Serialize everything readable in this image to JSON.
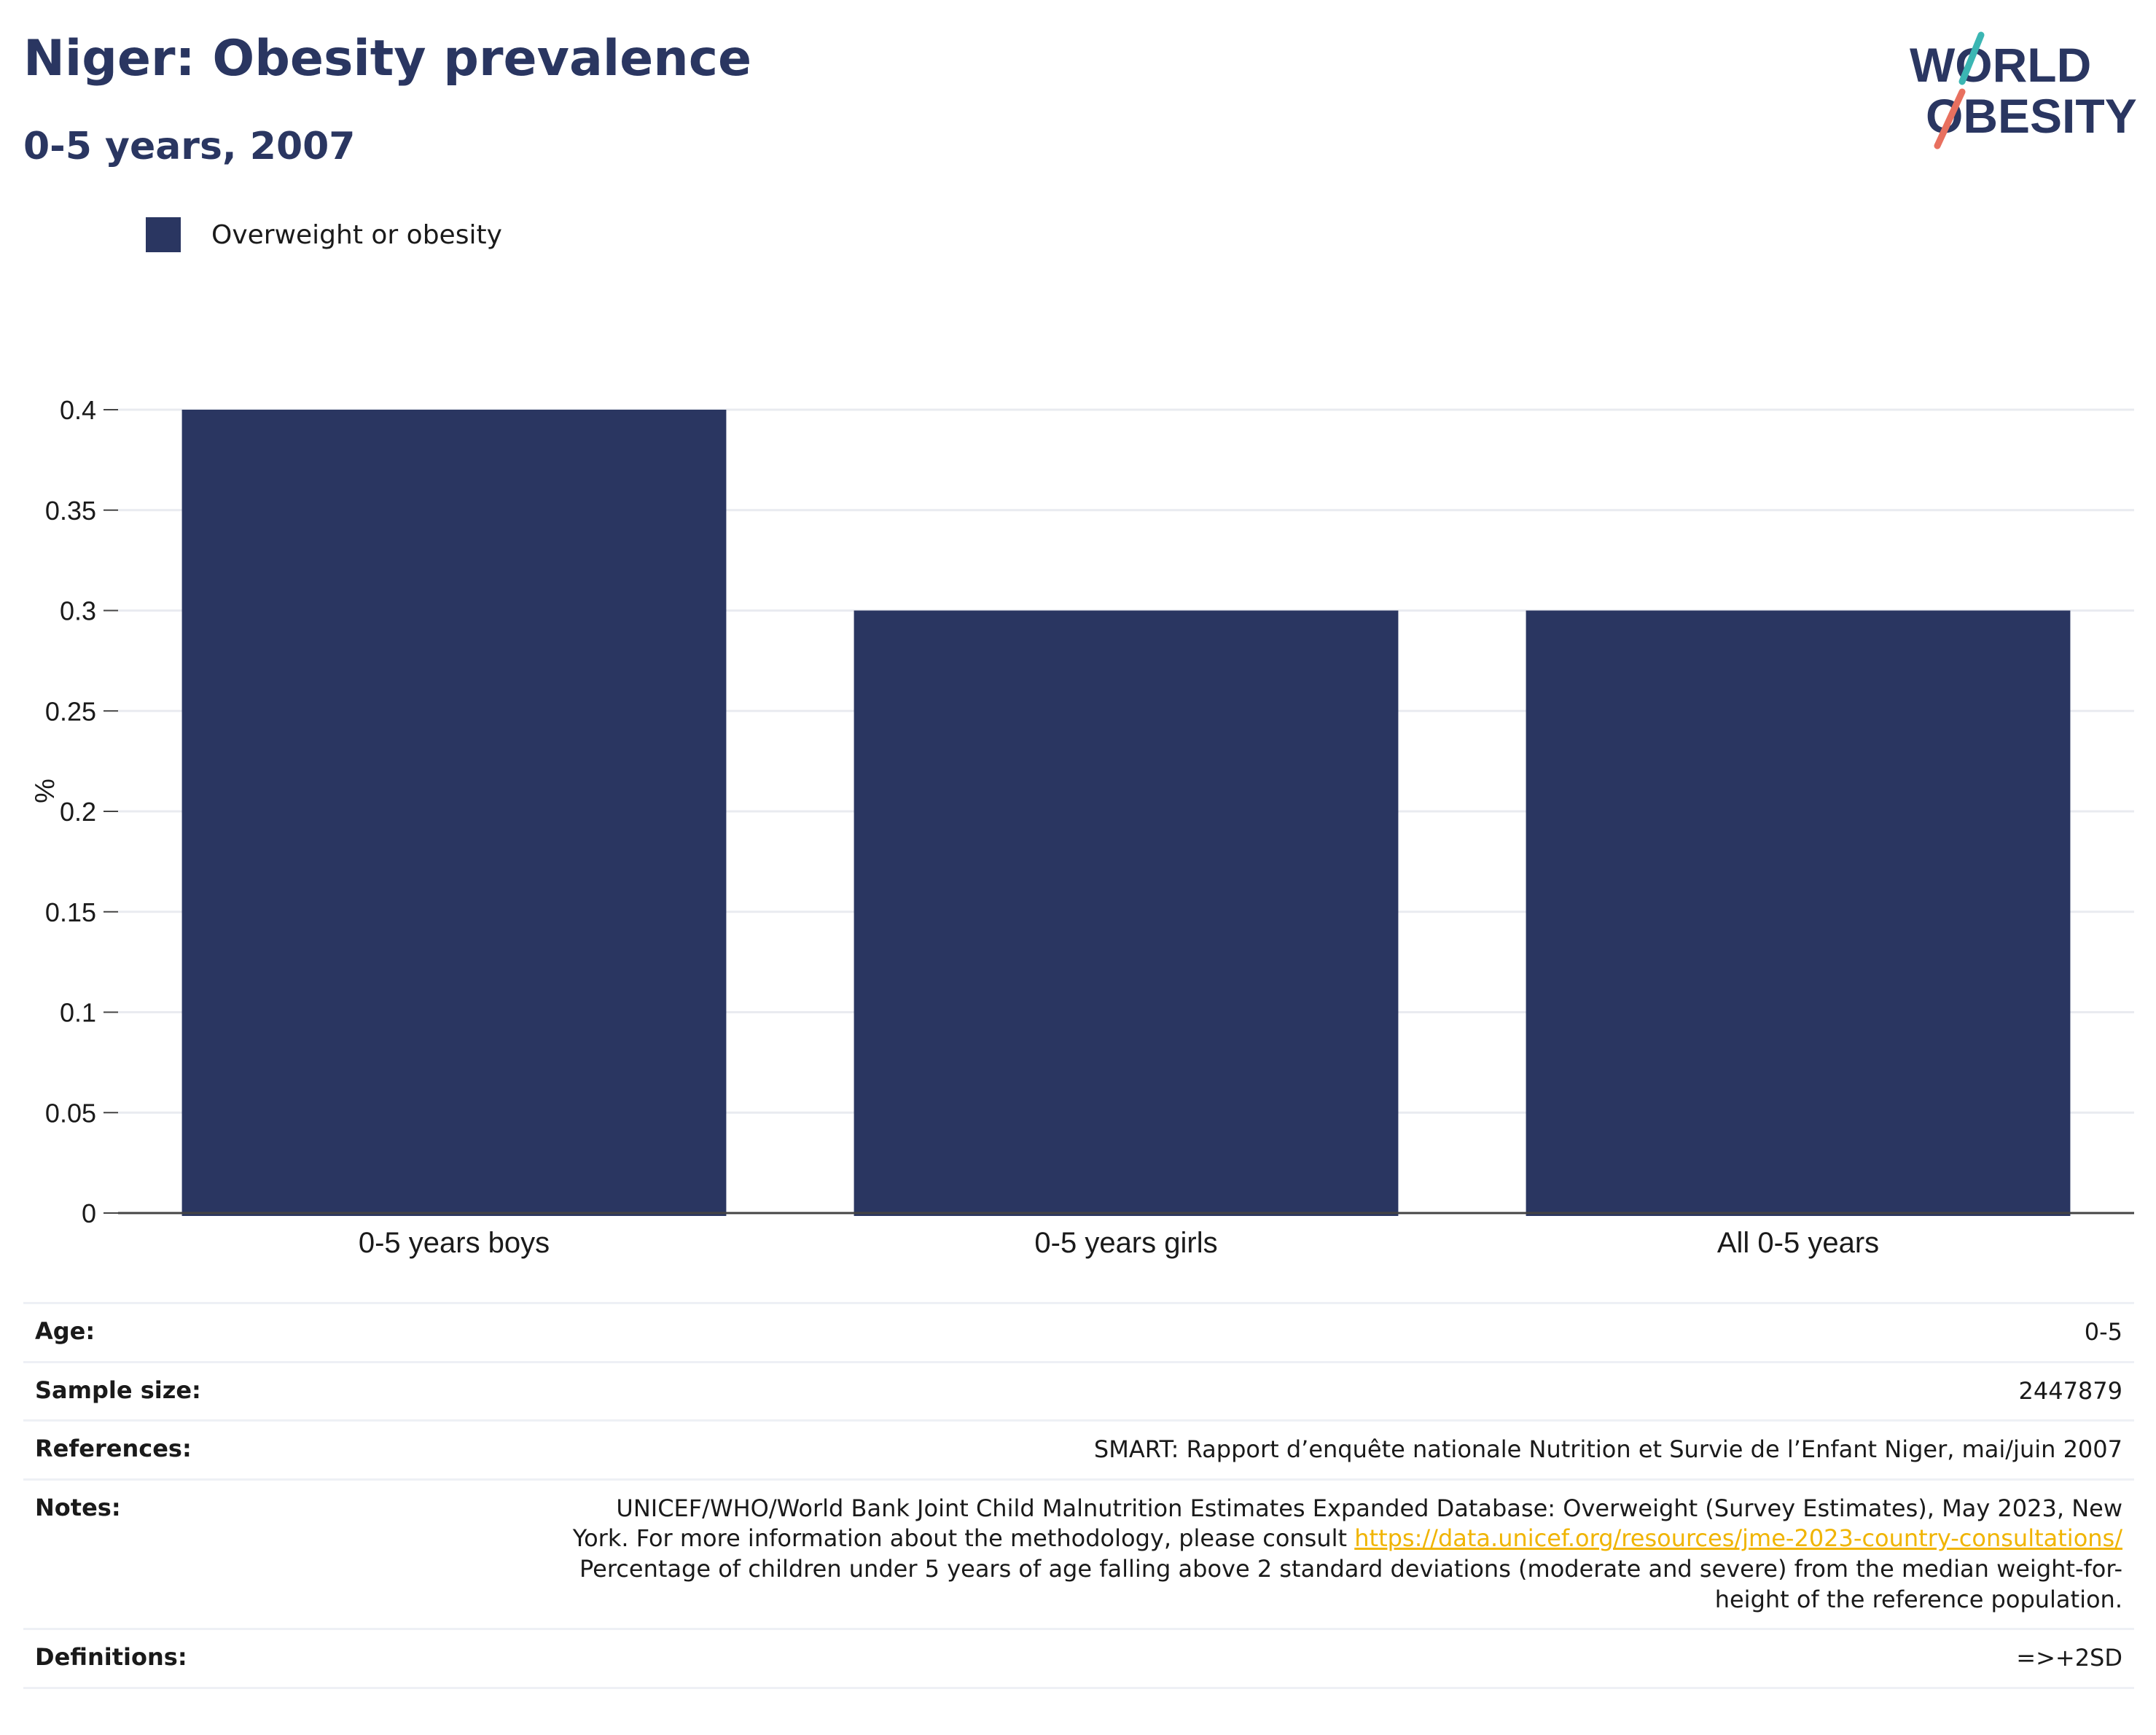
{
  "header": {
    "title": "Niger: Obesity prevalence",
    "subtitle": "0-5 years, 2007"
  },
  "logo": {
    "line1": "WORLD",
    "line2": "OBESITY",
    "accent_teal": "#3bb6b3",
    "accent_coral": "#e8705f",
    "color": "#2a3661"
  },
  "legend": {
    "label": "Overweight or obesity",
    "color": "#2a3661"
  },
  "chart_data": {
    "type": "bar",
    "categories": [
      "0-5 years boys",
      "0-5 years girls",
      "All 0-5 years"
    ],
    "series": [
      {
        "name": "Overweight or obesity",
        "values": [
          0.4,
          0.3,
          0.3
        ]
      }
    ],
    "ylabel": "%",
    "xlabel": "",
    "ylim": [
      0,
      0.4
    ],
    "yticks": [
      0,
      0.05,
      0.1,
      0.15,
      0.2,
      0.25,
      0.3,
      0.35,
      0.4
    ],
    "ytick_labels": [
      "0",
      "0.05",
      "0.1",
      "0.15",
      "0.2",
      "0.25",
      "0.3",
      "0.35",
      "0.4"
    ],
    "grid": true,
    "bar_color": "#2a3661"
  },
  "info": {
    "age_label": "Age:",
    "age_value": "0-5",
    "sample_label": "Sample size:",
    "sample_value": "2447879",
    "references_label": "References:",
    "references_value": "SMART: Rapport d’enquête nationale Nutrition et Survie de l’Enfant Niger, mai/juin 2007",
    "notes_label": "Notes:",
    "notes_line1": "UNICEF/WHO/World Bank Joint Child Malnutrition Estimates Expanded Database: Overweight (Survey Estimates), May 2023, New",
    "notes_line2_prefix": "York. For more information about the methodology, please consult ",
    "notes_link": "https://data.unicef.org/resources/jme-2023-country-consultations/",
    "notes_line3": "Percentage of children under 5 years of age falling above 2 standard deviations (moderate and severe) from the median weight-for-",
    "notes_line4": "height of the reference population.",
    "definitions_label": "Definitions:",
    "definitions_value": "=>+2SD"
  }
}
